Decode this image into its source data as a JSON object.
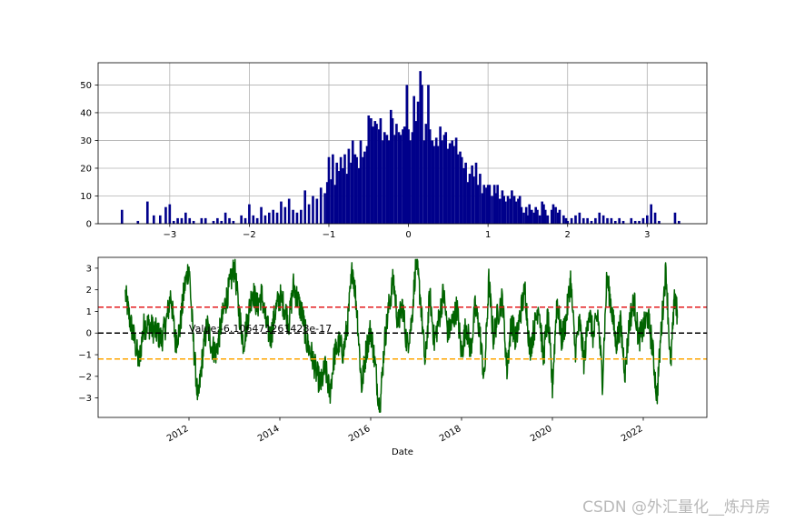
{
  "watermark": "CSDN @外汇量化__炼丹房",
  "chart_data": [
    {
      "type": "bar",
      "subtype": "histogram",
      "color": "#00008b",
      "grid": true,
      "xlim": [
        -3.9,
        3.75
      ],
      "ylim": [
        0,
        58
      ],
      "x_ticks": [
        -3,
        -2,
        -1,
        0,
        1,
        2,
        3
      ],
      "y_ticks": [
        0,
        10,
        20,
        30,
        40,
        50
      ],
      "bin_width": 0.03,
      "bins": [
        [
          -3.6,
          5
        ],
        [
          -3.4,
          1
        ],
        [
          -3.28,
          8
        ],
        [
          -3.2,
          3
        ],
        [
          -3.12,
          3
        ],
        [
          -3.05,
          6
        ],
        [
          -3.0,
          7
        ],
        [
          -2.95,
          1
        ],
        [
          -2.9,
          2
        ],
        [
          -2.85,
          2
        ],
        [
          -2.8,
          4
        ],
        [
          -2.75,
          2
        ],
        [
          -2.7,
          1
        ],
        [
          -2.6,
          2
        ],
        [
          -2.55,
          2
        ],
        [
          -2.45,
          1
        ],
        [
          -2.4,
          2
        ],
        [
          -2.35,
          1
        ],
        [
          -2.3,
          4
        ],
        [
          -2.25,
          2
        ],
        [
          -2.2,
          1
        ],
        [
          -2.1,
          3
        ],
        [
          -2.05,
          2
        ],
        [
          -2.0,
          7
        ],
        [
          -1.95,
          3
        ],
        [
          -1.9,
          2
        ],
        [
          -1.85,
          6
        ],
        [
          -1.8,
          3
        ],
        [
          -1.75,
          4
        ],
        [
          -1.7,
          5
        ],
        [
          -1.65,
          4
        ],
        [
          -1.6,
          8
        ],
        [
          -1.55,
          6
        ],
        [
          -1.5,
          9
        ],
        [
          -1.45,
          5
        ],
        [
          -1.4,
          4
        ],
        [
          -1.35,
          5
        ],
        [
          -1.3,
          12
        ],
        [
          -1.25,
          7
        ],
        [
          -1.2,
          10
        ],
        [
          -1.15,
          9
        ],
        [
          -1.1,
          13
        ],
        [
          -1.05,
          11
        ],
        [
          -1.02,
          15
        ],
        [
          -1.0,
          24
        ],
        [
          -0.97,
          16
        ],
        [
          -0.95,
          25
        ],
        [
          -0.92,
          14
        ],
        [
          -0.9,
          22
        ],
        [
          -0.87,
          19
        ],
        [
          -0.85,
          24
        ],
        [
          -0.82,
          20
        ],
        [
          -0.8,
          25
        ],
        [
          -0.77,
          18
        ],
        [
          -0.75,
          27
        ],
        [
          -0.72,
          22
        ],
        [
          -0.7,
          30
        ],
        [
          -0.67,
          25
        ],
        [
          -0.65,
          24
        ],
        [
          -0.62,
          20
        ],
        [
          -0.6,
          30
        ],
        [
          -0.57,
          24
        ],
        [
          -0.55,
          26
        ],
        [
          -0.52,
          28
        ],
        [
          -0.5,
          39
        ],
        [
          -0.47,
          38
        ],
        [
          -0.45,
          35
        ],
        [
          -0.42,
          37
        ],
        [
          -0.4,
          36
        ],
        [
          -0.37,
          34
        ],
        [
          -0.35,
          38
        ],
        [
          -0.32,
          30
        ],
        [
          -0.3,
          33
        ],
        [
          -0.27,
          32
        ],
        [
          -0.25,
          30
        ],
        [
          -0.22,
          41
        ],
        [
          -0.2,
          38
        ],
        [
          -0.17,
          32
        ],
        [
          -0.15,
          36
        ],
        [
          -0.12,
          33
        ],
        [
          -0.1,
          32
        ],
        [
          -0.07,
          34
        ],
        [
          -0.05,
          35
        ],
        [
          -0.02,
          50
        ],
        [
          0.0,
          34
        ],
        [
          0.02,
          30
        ],
        [
          0.05,
          33
        ],
        [
          0.07,
          46
        ],
        [
          0.1,
          37
        ],
        [
          0.12,
          44
        ],
        [
          0.15,
          55
        ],
        [
          0.17,
          50
        ],
        [
          0.2,
          30
        ],
        [
          0.22,
          36
        ],
        [
          0.25,
          50
        ],
        [
          0.27,
          34
        ],
        [
          0.3,
          30
        ],
        [
          0.32,
          28
        ],
        [
          0.35,
          31
        ],
        [
          0.37,
          28
        ],
        [
          0.4,
          35
        ],
        [
          0.42,
          30
        ],
        [
          0.45,
          32
        ],
        [
          0.47,
          33
        ],
        [
          0.5,
          27
        ],
        [
          0.52,
          29
        ],
        [
          0.55,
          30
        ],
        [
          0.57,
          28
        ],
        [
          0.6,
          31
        ],
        [
          0.62,
          25
        ],
        [
          0.65,
          26
        ],
        [
          0.67,
          24
        ],
        [
          0.7,
          20
        ],
        [
          0.72,
          22
        ],
        [
          0.75,
          15
        ],
        [
          0.77,
          18
        ],
        [
          0.8,
          21
        ],
        [
          0.82,
          17
        ],
        [
          0.85,
          22
        ],
        [
          0.87,
          14
        ],
        [
          0.9,
          18
        ],
        [
          0.93,
          11
        ],
        [
          0.95,
          14
        ],
        [
          0.98,
          13
        ],
        [
          1.0,
          14
        ],
        [
          1.02,
          14
        ],
        [
          1.05,
          10
        ],
        [
          1.08,
          14
        ],
        [
          1.1,
          11
        ],
        [
          1.12,
          14
        ],
        [
          1.15,
          9
        ],
        [
          1.18,
          12
        ],
        [
          1.2,
          10
        ],
        [
          1.22,
          8
        ],
        [
          1.25,
          10
        ],
        [
          1.28,
          9
        ],
        [
          1.3,
          12
        ],
        [
          1.33,
          10
        ],
        [
          1.35,
          8
        ],
        [
          1.38,
          9
        ],
        [
          1.4,
          10
        ],
        [
          1.42,
          6
        ],
        [
          1.45,
          4
        ],
        [
          1.48,
          6
        ],
        [
          1.5,
          3
        ],
        [
          1.52,
          7
        ],
        [
          1.55,
          5
        ],
        [
          1.58,
          4
        ],
        [
          1.6,
          6
        ],
        [
          1.62,
          5
        ],
        [
          1.65,
          3
        ],
        [
          1.68,
          8
        ],
        [
          1.7,
          7
        ],
        [
          1.72,
          5
        ],
        [
          1.75,
          3
        ],
        [
          1.8,
          5
        ],
        [
          1.82,
          7
        ],
        [
          1.85,
          6
        ],
        [
          1.88,
          4
        ],
        [
          1.9,
          5
        ],
        [
          1.95,
          3
        ],
        [
          1.98,
          2
        ],
        [
          2.0,
          1
        ],
        [
          2.05,
          2
        ],
        [
          2.1,
          3
        ],
        [
          2.15,
          4
        ],
        [
          2.2,
          2
        ],
        [
          2.25,
          2
        ],
        [
          2.3,
          1
        ],
        [
          2.35,
          2
        ],
        [
          2.4,
          4
        ],
        [
          2.45,
          3
        ],
        [
          2.5,
          2
        ],
        [
          2.55,
          2
        ],
        [
          2.6,
          1
        ],
        [
          2.65,
          2
        ],
        [
          2.7,
          1
        ],
        [
          2.8,
          2
        ],
        [
          2.85,
          1
        ],
        [
          2.9,
          1
        ],
        [
          2.95,
          2
        ],
        [
          3.0,
          3
        ],
        [
          3.05,
          7
        ],
        [
          3.1,
          4
        ],
        [
          3.15,
          1
        ],
        [
          3.35,
          4
        ],
        [
          3.4,
          1
        ]
      ]
    },
    {
      "type": "line",
      "color": "#006400",
      "grid": false,
      "xlabel": "Date",
      "xlim": [
        2010.0,
        2023.4
      ],
      "ylim": [
        -3.9,
        3.5
      ],
      "x_ticks": [
        2012,
        2014,
        2016,
        2018,
        2020,
        2022
      ],
      "y_ticks": [
        -3,
        -2,
        -1,
        0,
        1,
        2,
        3
      ],
      "hlines": [
        {
          "y": 1.2,
          "color": "#e31a1c",
          "style": "dashed"
        },
        {
          "y": 0,
          "color": "#000000",
          "style": "dashed"
        },
        {
          "y": -1.2,
          "color": "#ffa500",
          "style": "dashed"
        }
      ],
      "annotation": {
        "text": "Value:-6.106471261428e-17",
        "x": 2012.0,
        "y": 0.05
      },
      "series_x_range": [
        2010.6,
        2022.75
      ],
      "series": [
        [
          2010.6,
          1.8
        ],
        [
          2010.7,
          0.6
        ],
        [
          2010.8,
          -0.3
        ],
        [
          2010.9,
          -1.4
        ],
        [
          2011.0,
          0.3
        ],
        [
          2011.1,
          0.4
        ],
        [
          2011.2,
          0.2
        ],
        [
          2011.3,
          0.0
        ],
        [
          2011.4,
          -0.3
        ],
        [
          2011.5,
          0.5
        ],
        [
          2011.6,
          1.8
        ],
        [
          2011.7,
          -0.4
        ],
        [
          2011.8,
          0.2
        ],
        [
          2011.9,
          2.1
        ],
        [
          2012.0,
          3.1
        ],
        [
          2012.1,
          -0.5
        ],
        [
          2012.2,
          -3.2
        ],
        [
          2012.3,
          -1.0
        ],
        [
          2012.4,
          0.4
        ],
        [
          2012.5,
          -0.6
        ],
        [
          2012.6,
          -0.9
        ],
        [
          2012.7,
          0.3
        ],
        [
          2012.8,
          1.4
        ],
        [
          2012.9,
          2.2
        ],
        [
          2013.0,
          3.1
        ],
        [
          2013.1,
          1.0
        ],
        [
          2013.2,
          -0.5
        ],
        [
          2013.3,
          0.8
        ],
        [
          2013.4,
          2.0
        ],
        [
          2013.5,
          1.2
        ],
        [
          2013.6,
          1.8
        ],
        [
          2013.7,
          0.4
        ],
        [
          2013.8,
          -0.2
        ],
        [
          2013.9,
          1.0
        ],
        [
          2014.0,
          1.7
        ],
        [
          2014.1,
          1.2
        ],
        [
          2014.2,
          0.5
        ],
        [
          2014.3,
          2.2
        ],
        [
          2014.4,
          1.5
        ],
        [
          2014.5,
          0.8
        ],
        [
          2014.6,
          -0.5
        ],
        [
          2014.7,
          -1.0
        ],
        [
          2014.8,
          -1.8
        ],
        [
          2014.9,
          -2.4
        ],
        [
          2015.0,
          -1.6
        ],
        [
          2015.1,
          -2.8
        ],
        [
          2015.2,
          -1.0
        ],
        [
          2015.3,
          -0.5
        ],
        [
          2015.4,
          -0.9
        ],
        [
          2015.5,
          0.6
        ],
        [
          2015.6,
          3.1
        ],
        [
          2015.7,
          1.0
        ],
        [
          2015.8,
          -2.5
        ],
        [
          2015.9,
          -0.8
        ],
        [
          2016.0,
          0.2
        ],
        [
          2016.1,
          -1.5
        ],
        [
          2016.2,
          -3.6
        ],
        [
          2016.3,
          -0.5
        ],
        [
          2016.4,
          1.2
        ],
        [
          2016.5,
          2.5
        ],
        [
          2016.6,
          0.4
        ],
        [
          2016.7,
          1.3
        ],
        [
          2016.8,
          -0.6
        ],
        [
          2016.9,
          0.5
        ],
        [
          2017.0,
          3.4
        ],
        [
          2017.1,
          1.5
        ],
        [
          2017.2,
          -1.5
        ],
        [
          2017.3,
          1.8
        ],
        [
          2017.4,
          -0.4
        ],
        [
          2017.5,
          0.6
        ],
        [
          2017.6,
          1.9
        ],
        [
          2017.7,
          0.0
        ],
        [
          2017.8,
          0.5
        ],
        [
          2017.9,
          1.2
        ],
        [
          2018.0,
          -1.0
        ],
        [
          2018.1,
          0.4
        ],
        [
          2018.2,
          -0.8
        ],
        [
          2018.3,
          1.2
        ],
        [
          2018.4,
          0.1
        ],
        [
          2018.5,
          -2.2
        ],
        [
          2018.6,
          2.4
        ],
        [
          2018.7,
          -0.2
        ],
        [
          2018.8,
          0.9
        ],
        [
          2018.9,
          1.6
        ],
        [
          2019.0,
          -1.7
        ],
        [
          2019.1,
          0.6
        ],
        [
          2019.2,
          -0.4
        ],
        [
          2019.3,
          1.0
        ],
        [
          2019.4,
          2.0
        ],
        [
          2019.5,
          -0.8
        ],
        [
          2019.6,
          0.2
        ],
        [
          2019.7,
          1.4
        ],
        [
          2019.8,
          -1.2
        ],
        [
          2019.9,
          0.8
        ],
        [
          2020.0,
          -2.5
        ],
        [
          2020.1,
          1.6
        ],
        [
          2020.2,
          -0.3
        ],
        [
          2020.3,
          0.6
        ],
        [
          2020.4,
          2.5
        ],
        [
          2020.5,
          -0.8
        ],
        [
          2020.6,
          0.5
        ],
        [
          2020.7,
          -1.4
        ],
        [
          2020.8,
          1.1
        ],
        [
          2020.9,
          -0.2
        ],
        [
          2021.0,
          0.9
        ],
        [
          2021.1,
          -2.2
        ],
        [
          2021.2,
          2.6
        ],
        [
          2021.3,
          1.2
        ],
        [
          2021.4,
          -0.5
        ],
        [
          2021.5,
          0.4
        ],
        [
          2021.6,
          -1.8
        ],
        [
          2021.7,
          0.6
        ],
        [
          2021.8,
          1.5
        ],
        [
          2021.9,
          -0.3
        ],
        [
          2022.0,
          0.2
        ],
        [
          2022.1,
          0.8
        ],
        [
          2022.2,
          -0.6
        ],
        [
          2022.3,
          -3.0
        ],
        [
          2022.4,
          0.3
        ],
        [
          2022.5,
          3.0
        ],
        [
          2022.6,
          -1.6
        ],
        [
          2022.7,
          1.9
        ],
        [
          2022.75,
          0.7
        ]
      ]
    }
  ]
}
